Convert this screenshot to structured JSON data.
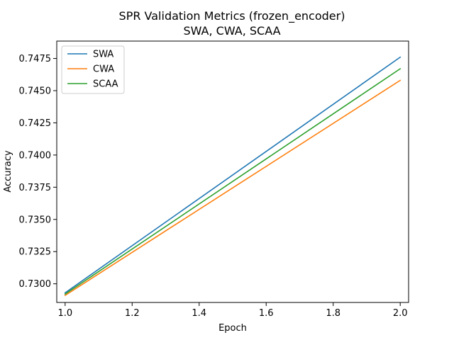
{
  "chart_data": {
    "type": "line",
    "title": "SPR Validation Metrics (frozen_encoder)",
    "subtitle": "SWA, CWA, SCAA",
    "xlabel": "Epoch",
    "ylabel": "Accuracy",
    "xlim": [
      0.975,
      2.025
    ],
    "ylim": [
      0.72855,
      0.74885
    ],
    "xticks": [
      1.0,
      1.2,
      1.4,
      1.6,
      1.8,
      2.0
    ],
    "xtick_labels": [
      "1.0",
      "1.2",
      "1.4",
      "1.6",
      "1.8",
      "2.0"
    ],
    "yticks": [
      0.73,
      0.7325,
      0.735,
      0.7375,
      0.74,
      0.7425,
      0.745,
      0.7475
    ],
    "ytick_labels": [
      "0.7300",
      "0.7325",
      "0.7350",
      "0.7375",
      "0.7400",
      "0.7425",
      "0.7450",
      "0.7475"
    ],
    "grid": false,
    "legend_position": "top-left",
    "series": [
      {
        "name": "SWA",
        "color": "#1f77b4",
        "x": [
          1.0,
          2.0
        ],
        "y": [
          0.7293,
          0.7476
        ]
      },
      {
        "name": "CWA",
        "color": "#ff7f0e",
        "x": [
          1.0,
          2.0
        ],
        "y": [
          0.7291,
          0.7458
        ]
      },
      {
        "name": "SCAA",
        "color": "#2ca02c",
        "x": [
          1.0,
          2.0
        ],
        "y": [
          0.7292,
          0.7467
        ]
      }
    ]
  }
}
